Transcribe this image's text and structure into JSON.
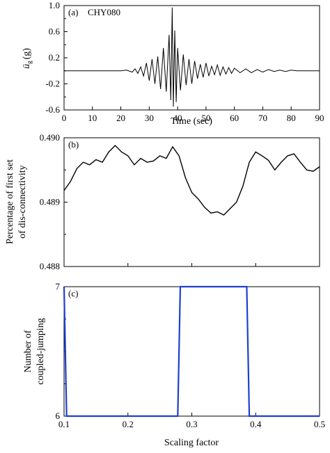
{
  "chart_data": [
    {
      "type": "line",
      "panel_label": "(a)",
      "annotation": "CHY080",
      "title": "",
      "xlabel": "Time (sec)",
      "ylabel_main": "ü",
      "ylabel_sub": "g",
      "ylabel_rest": "(g)",
      "xlim": [
        0,
        90
      ],
      "ylim": [
        -0.6,
        1.0
      ],
      "xticks": [
        "0",
        "10",
        "20",
        "30",
        "40",
        "50",
        "60",
        "70",
        "80",
        "90"
      ],
      "xtick_values": [
        0,
        10,
        20,
        30,
        40,
        50,
        60,
        70,
        80,
        90
      ],
      "yticks": [
        "1.0",
        "0.6",
        "0.2",
        "-0.2",
        "-0.6"
      ],
      "ytick_values": [
        1.0,
        0.6,
        0.2,
        -0.2,
        -0.6
      ],
      "grid": false,
      "legend": "none",
      "line_color": "#000000",
      "series": [
        {
          "x": [
            0,
            5,
            10,
            15,
            20,
            22,
            24,
            25,
            26,
            27,
            28,
            29,
            30,
            31,
            32,
            33,
            34,
            35,
            36,
            37,
            37.6,
            38.1,
            38.5,
            39,
            39.5,
            40,
            41,
            42,
            43,
            44,
            45,
            46,
            47,
            48,
            49,
            50,
            51,
            52,
            53,
            54,
            55,
            56,
            57,
            58,
            59,
            60,
            62,
            64,
            66,
            68,
            70,
            72,
            74,
            76,
            78,
            80,
            82,
            85,
            90
          ],
          "y": [
            0,
            0,
            0,
            0,
            0,
            0.01,
            -0.02,
            0.03,
            -0.04,
            0.06,
            -0.08,
            0.12,
            -0.15,
            0.18,
            -0.2,
            0.22,
            -0.28,
            0.35,
            -0.32,
            0.55,
            -0.45,
            0.97,
            -0.55,
            0.62,
            -0.48,
            0.35,
            -0.3,
            0.25,
            -0.22,
            0.18,
            -0.2,
            0.15,
            -0.12,
            0.1,
            -0.1,
            0.12,
            -0.08,
            0.07,
            -0.06,
            0.09,
            -0.07,
            0.06,
            -0.05,
            0.05,
            -0.04,
            0.04,
            -0.03,
            0.03,
            -0.03,
            0.02,
            -0.02,
            0.02,
            -0.01,
            0.01,
            -0.01,
            0.01,
            0,
            0,
            0
          ]
        }
      ]
    },
    {
      "type": "line",
      "panel_label": "(b)",
      "title": "",
      "xlabel": "",
      "ylabel_line1": "Percentage of first set",
      "ylabel_line2": "of dis-connectivity",
      "xlim": [
        0.1,
        0.5
      ],
      "ylim": [
        0.488,
        0.49
      ],
      "yticks": [
        "0.490",
        "0.489",
        "0.488"
      ],
      "ytick_values": [
        0.49,
        0.489,
        0.488
      ],
      "grid": false,
      "legend": "none",
      "line_color": "#000000",
      "series": [
        {
          "x": [
            0.1,
            0.11,
            0.12,
            0.13,
            0.14,
            0.15,
            0.16,
            0.17,
            0.18,
            0.19,
            0.2,
            0.21,
            0.22,
            0.23,
            0.24,
            0.25,
            0.26,
            0.27,
            0.28,
            0.29,
            0.3,
            0.31,
            0.32,
            0.33,
            0.34,
            0.35,
            0.36,
            0.37,
            0.38,
            0.39,
            0.4,
            0.41,
            0.42,
            0.43,
            0.44,
            0.45,
            0.46,
            0.47,
            0.48,
            0.49,
            0.5
          ],
          "y": [
            0.48918,
            0.48932,
            0.48952,
            0.48962,
            0.48958,
            0.48966,
            0.48962,
            0.48978,
            0.48988,
            0.48978,
            0.48972,
            0.48958,
            0.48968,
            0.48962,
            0.48964,
            0.48972,
            0.48968,
            0.48986,
            0.48972,
            0.48938,
            0.48915,
            0.48905,
            0.48892,
            0.48883,
            0.48885,
            0.4888,
            0.4889,
            0.489,
            0.48925,
            0.48962,
            0.48978,
            0.48972,
            0.48965,
            0.4895,
            0.48962,
            0.48972,
            0.48975,
            0.48962,
            0.4895,
            0.48948,
            0.48955
          ]
        }
      ]
    },
    {
      "type": "line",
      "panel_label": "(c)",
      "title": "",
      "xlabel": "Scaling factor",
      "ylabel_line1": "Number of",
      "ylabel_line2": "coupled-jumping",
      "xlim": [
        0.1,
        0.5
      ],
      "ylim": [
        6,
        7
      ],
      "xticks": [
        "0.1",
        "0.2",
        "0.3",
        "0.4",
        "0.5"
      ],
      "xtick_values": [
        0.1,
        0.2,
        0.3,
        0.4,
        0.5
      ],
      "yticks": [
        "7",
        "6"
      ],
      "ytick_values": [
        7,
        6
      ],
      "grid": false,
      "legend": "none",
      "line_color": "#1f3fd0",
      "series": [
        {
          "x": [
            0.1,
            0.104,
            0.104,
            0.278,
            0.282,
            0.386,
            0.39,
            0.5
          ],
          "y": [
            7,
            6,
            6,
            6,
            7,
            7,
            6,
            6
          ]
        }
      ]
    }
  ]
}
